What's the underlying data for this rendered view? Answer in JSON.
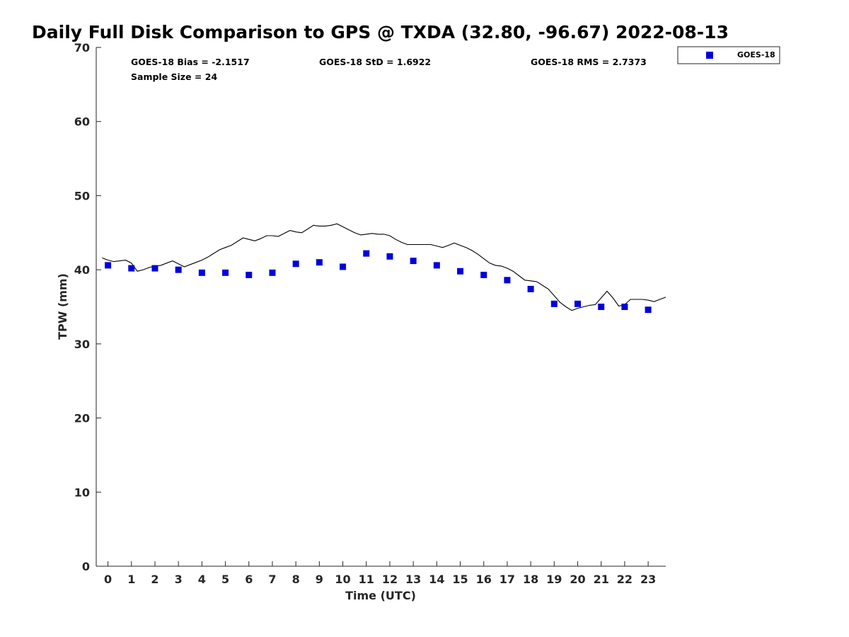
{
  "chart_data": {
    "type": "scatter",
    "title": "Daily Full Disk Comparison to GPS @ TXDA (32.80, -96.67) 2022-08-13",
    "xlabel": "Time (UTC)",
    "ylabel": "TPW (mm)",
    "xlim": [
      -0.5,
      23.75
    ],
    "ylim": [
      0,
      70
    ],
    "x_ticks": [
      "0",
      "1",
      "2",
      "3",
      "4",
      "5",
      "6",
      "7",
      "8",
      "9",
      "10",
      "11",
      "12",
      "13",
      "14",
      "15",
      "16",
      "17",
      "18",
      "19",
      "20",
      "21",
      "22",
      "23"
    ],
    "y_ticks": [
      "0",
      "10",
      "20",
      "30",
      "40",
      "50",
      "60",
      "70"
    ],
    "grid": false,
    "legend_position": "top-right",
    "stats": {
      "bias": "GOES-18 Bias = -2.1517",
      "std": "GOES-18 StD = 1.6922",
      "rms": "GOES-18 RMS = 2.7373",
      "sample_size": "Sample Size = 24"
    },
    "series": [
      {
        "name": "GOES-18",
        "kind": "scatter",
        "marker": "square",
        "color": "#0000dd",
        "x": [
          0,
          1,
          2,
          3,
          4,
          5,
          6,
          7,
          8,
          9,
          10,
          11,
          12,
          13,
          14,
          15,
          16,
          17,
          18,
          19,
          20,
          21,
          22,
          23
        ],
        "y": [
          40.6,
          40.2,
          40.2,
          40.0,
          39.6,
          39.6,
          39.3,
          39.6,
          40.8,
          41.0,
          40.4,
          42.2,
          41.8,
          41.2,
          40.6,
          39.8,
          39.3,
          38.6,
          37.4,
          35.4,
          35.4,
          35.0,
          35.0,
          34.6
        ]
      },
      {
        "kind": "line",
        "color": "#000000",
        "x": [
          -0.25,
          0,
          0.25,
          0.5,
          0.75,
          1,
          1.25,
          1.5,
          1.75,
          2,
          2.25,
          2.5,
          2.75,
          3,
          3.25,
          3.5,
          3.75,
          4,
          4.25,
          4.5,
          4.75,
          5,
          5.25,
          5.5,
          5.75,
          6,
          6.25,
          6.5,
          6.75,
          7,
          7.25,
          7.5,
          7.75,
          8,
          8.25,
          8.5,
          8.75,
          9,
          9.25,
          9.5,
          9.75,
          10,
          10.25,
          10.5,
          10.75,
          11,
          11.25,
          11.5,
          11.75,
          12,
          12.25,
          12.5,
          12.75,
          13,
          13.25,
          13.5,
          13.75,
          14,
          14.25,
          14.5,
          14.75,
          15,
          15.25,
          15.5,
          15.75,
          16,
          16.25,
          16.5,
          16.75,
          17,
          17.25,
          17.5,
          17.75,
          18,
          18.25,
          18.5,
          18.75,
          19,
          19.25,
          19.5,
          19.75,
          20,
          20.25,
          20.5,
          20.75,
          21,
          21.25,
          21.5,
          21.75,
          22,
          22.25,
          22.5,
          22.75,
          23,
          23.25,
          23.5,
          23.75
        ],
        "y": [
          41.6,
          41.3,
          41.1,
          41.2,
          41.3,
          40.9,
          39.8,
          40.0,
          40.3,
          40.5,
          40.6,
          40.9,
          41.2,
          40.8,
          40.4,
          40.7,
          41.0,
          41.3,
          41.7,
          42.2,
          42.7,
          43.0,
          43.3,
          43.8,
          44.3,
          44.1,
          43.9,
          44.2,
          44.6,
          44.6,
          44.5,
          44.9,
          45.3,
          45.1,
          45.0,
          45.5,
          46.0,
          45.9,
          45.9,
          46.0,
          46.2,
          45.8,
          45.4,
          45.0,
          44.7,
          44.8,
          44.9,
          44.8,
          44.8,
          44.6,
          44.1,
          43.7,
          43.4,
          43.4,
          43.4,
          43.4,
          43.4,
          43.2,
          43.0,
          43.3,
          43.6,
          43.3,
          43.0,
          42.6,
          42.1,
          41.5,
          40.9,
          40.6,
          40.5,
          40.2,
          39.8,
          39.2,
          38.6,
          38.5,
          38.4,
          37.9,
          37.4,
          36.5,
          35.6,
          35.0,
          34.5,
          34.8,
          35.0,
          35.2,
          35.3,
          36.2,
          37.1,
          36.2,
          35.1,
          35.3,
          36.0,
          36.0,
          36.0,
          35.9,
          35.7,
          36.0,
          36.3
        ]
      }
    ]
  }
}
